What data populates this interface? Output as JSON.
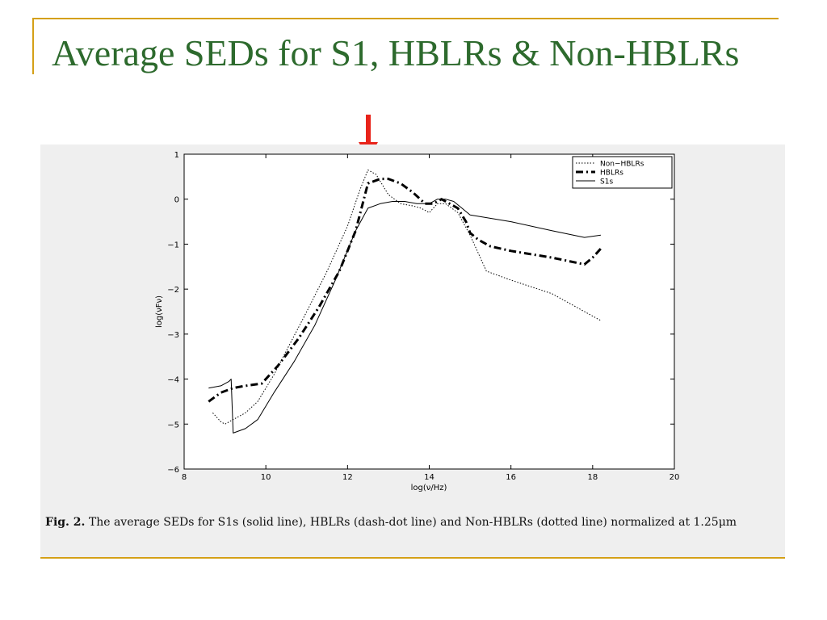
{
  "slide": {
    "title": "Average SEDs for S1, HBLRs & Non-HBLRs",
    "accent_color": "#d4a017",
    "title_color": "#2d6a2d",
    "arrow_color": "#e8231a",
    "arrow_icon": "down-arrow-icon"
  },
  "caption": {
    "label": "Fig. 2.",
    "text": "The average SEDs for S1s (solid line), HBLRs (dash-dot line) and Non-HBLRs (dotted line) normalized at 1.25μm"
  },
  "chart_data": {
    "type": "line",
    "xlabel": "log(ν/Hz)",
    "ylabel": "log(νFν)",
    "xlim": [
      8,
      20
    ],
    "ylim": [
      -6,
      1
    ],
    "xticks": [
      8,
      10,
      12,
      14,
      16,
      18,
      20
    ],
    "yticks": [
      -6,
      -5,
      -4,
      -3,
      -2,
      -1,
      0,
      1
    ],
    "xtick_labels": [
      "8",
      "10",
      "12",
      "14",
      "16",
      "18",
      "20"
    ],
    "ytick_labels": [
      "−6",
      "−5",
      "−4",
      "−3",
      "−2",
      "−1",
      "0",
      "1"
    ],
    "grid": false,
    "legend_position": "top-right",
    "series": [
      {
        "name": "Non−HBLRs",
        "style": "dotted",
        "x": [
          8.7,
          8.9,
          9.0,
          9.2,
          9.5,
          9.8,
          10.2,
          10.6,
          11.0,
          11.5,
          12.0,
          12.3,
          12.5,
          12.7,
          13.0,
          13.3,
          13.6,
          13.8,
          14.0,
          14.2,
          14.4,
          14.7,
          15.0,
          15.2,
          15.4,
          16.0,
          17.0,
          17.5,
          18.2
        ],
        "y": [
          -4.75,
          -4.95,
          -5.0,
          -4.9,
          -4.75,
          -4.5,
          -3.9,
          -3.2,
          -2.5,
          -1.6,
          -0.6,
          0.2,
          0.65,
          0.55,
          0.1,
          -0.1,
          -0.15,
          -0.2,
          -0.3,
          -0.1,
          -0.1,
          -0.3,
          -0.8,
          -1.2,
          -1.6,
          -1.8,
          -2.1,
          -2.35,
          -2.7
        ]
      },
      {
        "name": "HBLRs",
        "style": "dash-dot",
        "x": [
          8.6,
          8.9,
          9.2,
          9.5,
          9.9,
          10.3,
          10.8,
          11.3,
          11.8,
          12.2,
          12.5,
          12.8,
          13.0,
          13.3,
          13.6,
          13.9,
          14.1,
          14.3,
          14.5,
          14.7,
          14.9,
          15.0,
          15.2,
          15.5,
          16.0,
          17.0,
          17.8,
          18.0,
          18.2
        ],
        "y": [
          -4.5,
          -4.3,
          -4.2,
          -4.15,
          -4.1,
          -3.7,
          -3.1,
          -2.4,
          -1.6,
          -0.7,
          0.35,
          0.45,
          0.45,
          0.35,
          0.15,
          -0.1,
          -0.1,
          0.0,
          -0.1,
          -0.2,
          -0.5,
          -0.75,
          -0.9,
          -1.05,
          -1.15,
          -1.3,
          -1.45,
          -1.3,
          -1.1
        ]
      },
      {
        "name": "S1s",
        "style": "solid",
        "x": [
          8.6,
          8.9,
          9.1,
          9.15,
          9.2,
          9.5,
          9.8,
          10.2,
          10.7,
          11.2,
          11.7,
          12.2,
          12.5,
          12.8,
          13.1,
          13.4,
          13.7,
          14.0,
          14.2,
          14.4,
          14.6,
          14.8,
          15.0,
          16.0,
          17.0,
          17.8,
          18.2
        ],
        "y": [
          -4.2,
          -4.15,
          -4.05,
          -4.0,
          -5.2,
          -5.1,
          -4.9,
          -4.3,
          -3.6,
          -2.8,
          -1.8,
          -0.7,
          -0.2,
          -0.1,
          -0.05,
          -0.05,
          -0.1,
          -0.1,
          0.0,
          0.0,
          -0.05,
          -0.2,
          -0.35,
          -0.5,
          -0.7,
          -0.85,
          -0.8
        ]
      }
    ]
  }
}
